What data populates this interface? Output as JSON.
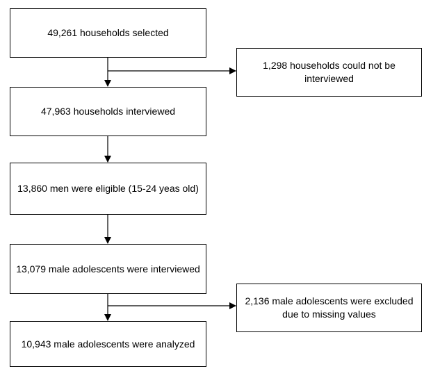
{
  "flowchart": {
    "steps": [
      {
        "text": "49,261 households selected"
      },
      {
        "text": "47,963 households interviewed"
      },
      {
        "text": "13,860 men were eligible (15-24 yeas old)"
      },
      {
        "text": "13,079 male adolescents were interviewed"
      },
      {
        "text": "10,943 male adolescents were analyzed"
      }
    ],
    "exclusions": [
      {
        "text": "1,298 households could not be interviewed"
      },
      {
        "text": "2,136 male adolescents were excluded due to missing values"
      }
    ],
    "colors": {
      "border": "#000000",
      "background": "#ffffff",
      "text": "#000000"
    }
  }
}
